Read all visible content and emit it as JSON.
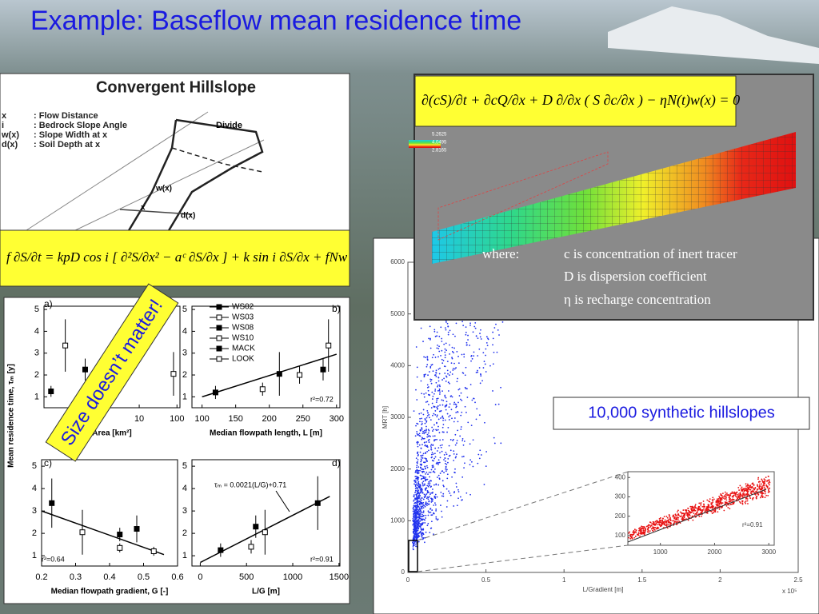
{
  "title": "Example: Baseflow mean residence time",
  "hillslope": {
    "title": "Convergent Hillslope",
    "legend": [
      {
        "symbol": "x",
        "text": ": Flow Distance"
      },
      {
        "symbol": "i",
        "text": ": Bedrock Slope Angle"
      },
      {
        "symbol": "w(x)",
        "text": ": Slope Width at x"
      },
      {
        "symbol": "d(x)",
        "text": ": Soil Depth at x"
      }
    ],
    "labels": [
      "Divide",
      "w(x)",
      "x",
      "d(x)"
    ],
    "equation": "f ∂S/∂t = kpD cos i [ ∂²S/∂x² − aᶜ ∂S/∂x ] + k sin i ∂S/∂x + fNw"
  },
  "transport": {
    "equation": "∂(cS)/∂t + ∂cQ/∂x + D ∂/∂x ( S ∂c/∂x ) − ηN(t)w(x) = 0",
    "colorbar": [
      "5.2625",
      "4.0495",
      "2.8165"
    ],
    "where": "where:",
    "definitions": [
      "c is concentration of inert tracer",
      "D is dispersion coefficient",
      "η is recharge concentration"
    ]
  },
  "scatter": {
    "ylabel": "MRT [h]",
    "xlabel": "L/Gradient [m]",
    "x_exponent": "x 10⁵",
    "xlim": [
      0,
      2.5
    ],
    "ylim": [
      0,
      6000
    ],
    "xticks": [
      0,
      0.5,
      1,
      1.5,
      2,
      2.5
    ],
    "yticks": [
      0,
      1000,
      2000,
      3000,
      4000,
      5000,
      6000
    ],
    "callout": "10,000 synthetic hillslopes",
    "inset": {
      "xlim": [
        400,
        3100
      ],
      "ylim": [
        50,
        430
      ],
      "xticks": [
        1000,
        2000,
        3000
      ],
      "yticks": [
        100,
        200,
        300,
        400
      ],
      "annotation": "r²=0.91"
    }
  },
  "panels": {
    "ylabel": "Mean residence time, τₘ [y]",
    "banner": "Size doesn’t matter!",
    "legend": [
      "WS02",
      "WS03",
      "WS08",
      "WS10",
      "MACK",
      "LOOK"
    ],
    "plots": [
      {
        "label": "a)",
        "xlabel": "Area [km²]",
        "log": true,
        "xlim": [
          0.03,
          120
        ],
        "xticks": [
          10,
          100
        ],
        "ylim": [
          0.5,
          5.15
        ],
        "yticks": [
          1,
          2,
          3,
          4,
          5
        ],
        "points": [
          {
            "x": 0.046,
            "y": 1.25,
            "err": 0.25
          },
          {
            "x": 0.11,
            "y": 3.35,
            "err": 1.2
          },
          {
            "x": 0.37,
            "y": 2.25,
            "err": 0.5
          },
          {
            "x": 81,
            "y": 2.05,
            "err": 1.0
          }
        ],
        "annotations": []
      },
      {
        "label": "b)",
        "xlabel": "Median flowpath length, L [m]",
        "log": false,
        "xlim": [
          85,
          305
        ],
        "xticks": [
          100,
          150,
          200,
          250,
          300
        ],
        "ylim": [
          0.5,
          5.15
        ],
        "yticks": [
          1,
          2,
          3,
          4,
          5
        ],
        "points": [
          {
            "x": 120,
            "y": 1.2,
            "err": 0.3
          },
          {
            "x": 190,
            "y": 1.35,
            "err": 0.3
          },
          {
            "x": 215,
            "y": 2.05,
            "err": 1.0
          },
          {
            "x": 245,
            "y": 2.0,
            "err": 0.4
          },
          {
            "x": 280,
            "y": 2.25,
            "err": 0.5
          },
          {
            "x": 288,
            "y": 3.35,
            "err": 1.2
          }
        ],
        "fit": [
          [
            100,
            1.0
          ],
          [
            300,
            2.95
          ]
        ],
        "annotations": [
          "r²=0.72"
        ]
      },
      {
        "label": "c)",
        "xlabel": "Median flowpath gradient, G [-]",
        "log": false,
        "xlim": [
          0.2,
          0.6
        ],
        "xticks": [
          0.2,
          0.3,
          0.4,
          0.5,
          0.6
        ],
        "ylim": [
          0.54,
          5.29
        ],
        "yticks": [
          1,
          2,
          3,
          4,
          5
        ],
        "points": [
          {
            "x": 0.23,
            "y": 3.35,
            "err": 1.1
          },
          {
            "x": 0.32,
            "y": 2.05,
            "err": 1.0
          },
          {
            "x": 0.43,
            "y": 1.95,
            "err": 0.3
          },
          {
            "x": 0.43,
            "y": 1.35,
            "err": 0.2
          },
          {
            "x": 0.48,
            "y": 2.2,
            "err": 0.6
          },
          {
            "x": 0.53,
            "y": 1.2,
            "err": 0.2
          }
        ],
        "fit": [
          [
            0.2,
            3.0
          ],
          [
            0.56,
            1.05
          ]
        ],
        "annotations": [
          "r²=0.64"
        ]
      },
      {
        "label": "d)",
        "xlabel": "L/G [m]",
        "log": false,
        "xlim": [
          -90,
          1510
        ],
        "xticks": [
          0,
          500,
          1000,
          1500
        ],
        "ylim": [
          0.54,
          5.29
        ],
        "yticks": [
          1,
          2,
          3,
          4,
          5
        ],
        "points": [
          {
            "x": 220,
            "y": 1.25,
            "err": 0.3
          },
          {
            "x": 550,
            "y": 1.4,
            "err": 0.3
          },
          {
            "x": 600,
            "y": 2.3,
            "err": 0.5
          },
          {
            "x": 700,
            "y": 2.05,
            "err": 1.0
          },
          {
            "x": 1270,
            "y": 3.35,
            "err": 1.2
          }
        ],
        "fit": [
          [
            0,
            0.7
          ],
          [
            1400,
            3.65
          ]
        ],
        "annotations": [
          "τₘ = 0.0021(L/G)+0.71",
          "r²=0.91"
        ]
      }
    ]
  }
}
